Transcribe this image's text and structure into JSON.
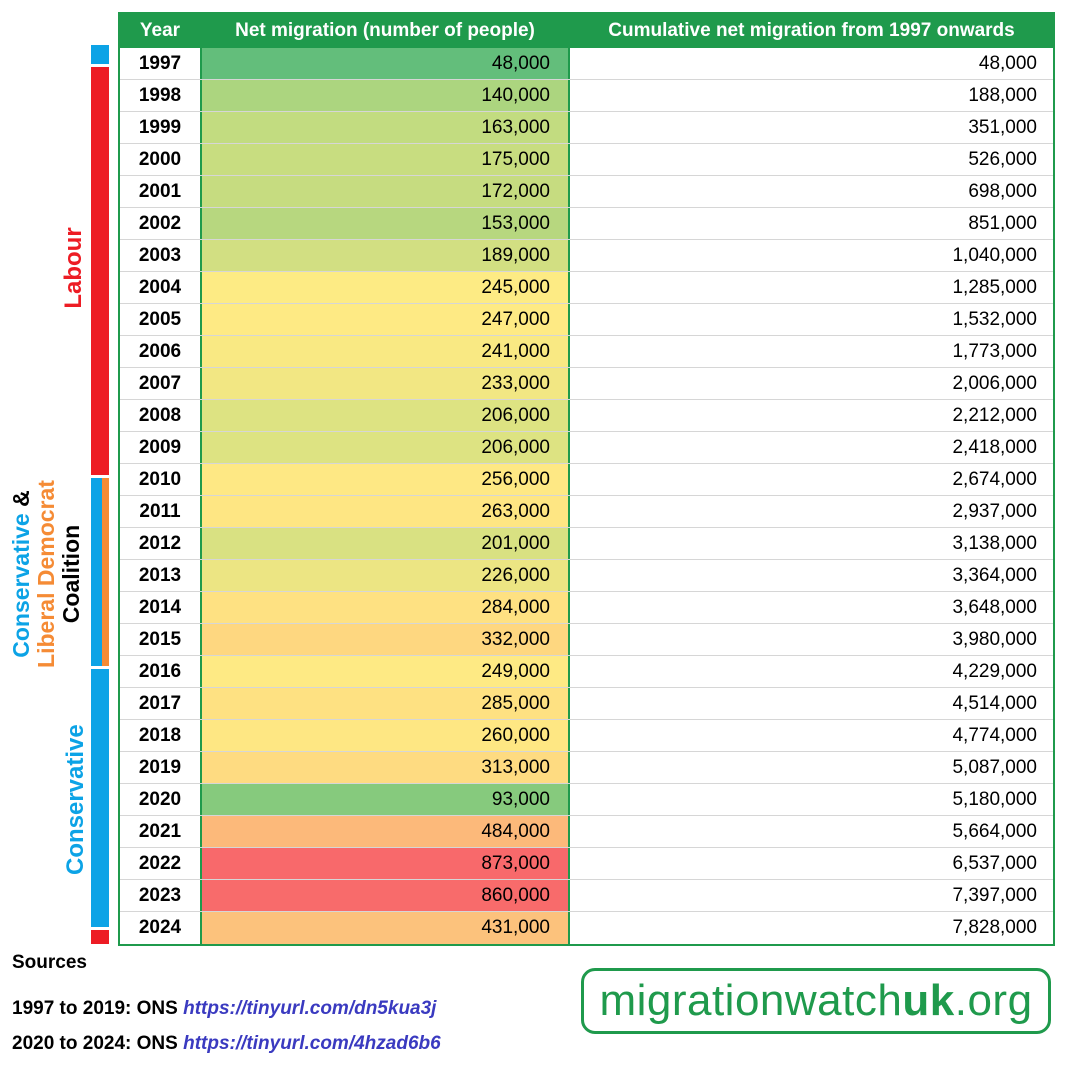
{
  "table": {
    "headers": {
      "year": "Year",
      "net": "Net migration (number of people)",
      "cumulative": "Cumulative net migration from 1997 onwards"
    },
    "rows": [
      {
        "year": "1997",
        "net": "48,000",
        "cumulative": "48,000",
        "color": "#63be7b"
      },
      {
        "year": "1998",
        "net": "140,000",
        "cumulative": "188,000",
        "color": "#acd57f"
      },
      {
        "year": "1999",
        "net": "163,000",
        "cumulative": "351,000",
        "color": "#c2dc80"
      },
      {
        "year": "2000",
        "net": "175,000",
        "cumulative": "526,000",
        "color": "#c8dd80"
      },
      {
        "year": "2001",
        "net": "172,000",
        "cumulative": "698,000",
        "color": "#c6dc80"
      },
      {
        "year": "2002",
        "net": "153,000",
        "cumulative": "851,000",
        "color": "#b7d77f"
      },
      {
        "year": "2003",
        "net": "189,000",
        "cumulative": "1,040,000",
        "color": "#d2df82"
      },
      {
        "year": "2004",
        "net": "245,000",
        "cumulative": "1,285,000",
        "color": "#fdeb84"
      },
      {
        "year": "2005",
        "net": "247,000",
        "cumulative": "1,532,000",
        "color": "#feea84"
      },
      {
        "year": "2006",
        "net": "241,000",
        "cumulative": "1,773,000",
        "color": "#f9e983"
      },
      {
        "year": "2007",
        "net": "233,000",
        "cumulative": "2,006,000",
        "color": "#f2e783"
      },
      {
        "year": "2008",
        "net": "206,000",
        "cumulative": "2,212,000",
        "color": "#dde382"
      },
      {
        "year": "2009",
        "net": "206,000",
        "cumulative": "2,418,000",
        "color": "#dde382"
      },
      {
        "year": "2010",
        "net": "256,000",
        "cumulative": "2,674,000",
        "color": "#fee884"
      },
      {
        "year": "2011",
        "net": "263,000",
        "cumulative": "2,937,000",
        "color": "#fee683"
      },
      {
        "year": "2012",
        "net": "201,000",
        "cumulative": "3,138,000",
        "color": "#d9e182"
      },
      {
        "year": "2013",
        "net": "226,000",
        "cumulative": "3,364,000",
        "color": "#ece583"
      },
      {
        "year": "2014",
        "net": "284,000",
        "cumulative": "3,648,000",
        "color": "#fee182"
      },
      {
        "year": "2015",
        "net": "332,000",
        "cumulative": "3,980,000",
        "color": "#fed780"
      },
      {
        "year": "2016",
        "net": "249,000",
        "cumulative": "4,229,000",
        "color": "#feea84"
      },
      {
        "year": "2017",
        "net": "285,000",
        "cumulative": "4,514,000",
        "color": "#fee182"
      },
      {
        "year": "2018",
        "net": "260,000",
        "cumulative": "4,774,000",
        "color": "#fee783"
      },
      {
        "year": "2019",
        "net": "313,000",
        "cumulative": "5,087,000",
        "color": "#fedb81"
      },
      {
        "year": "2020",
        "net": "93,000",
        "cumulative": "5,180,000",
        "color": "#86ca7d"
      },
      {
        "year": "2021",
        "net": "484,000",
        "cumulative": "5,664,000",
        "color": "#fcb97a"
      },
      {
        "year": "2022",
        "net": "873,000",
        "cumulative": "6,537,000",
        "color": "#f8696b"
      },
      {
        "year": "2023",
        "net": "860,000",
        "cumulative": "7,397,000",
        "color": "#f86b6b"
      },
      {
        "year": "2024",
        "net": "431,000",
        "cumulative": "7,828,000",
        "color": "#fcc27c"
      }
    ]
  },
  "governments": {
    "labour": "Labour",
    "coalition_line1_a": "Conservative",
    "coalition_line1_b": "&",
    "coalition_line2": "Liberal Democrat",
    "coalition_line3": "Coalition",
    "conservative": "Conservative",
    "colors": {
      "labour": "#ed1c24",
      "conservative": "#0ca3e6",
      "libdem": "#f58b35",
      "coalition_text": "#000000"
    }
  },
  "sources": {
    "title": "Sources",
    "line1_prefix": "1997 to 2019: ONS",
    "line1_link": "https://tinyurl.com/dn5kua3j",
    "line2_prefix": "2020 to 2024: ONS",
    "line2_link": "https://tinyurl.com/4hzad6b6"
  },
  "logo": {
    "part1": "migration",
    "part2": "watch",
    "part3": "uk",
    "part4": ".org"
  }
}
